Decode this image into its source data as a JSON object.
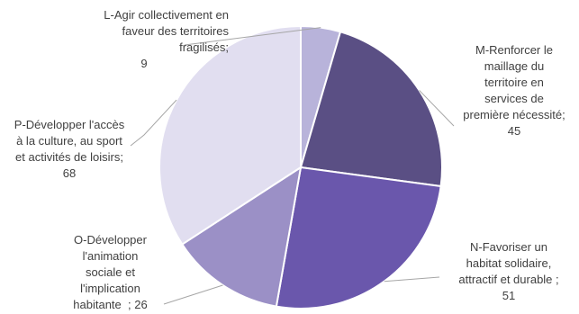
{
  "chart_data": {
    "type": "pie",
    "title": "",
    "slices": [
      {
        "label": "L-Agir collectivement en faveur des territoires fragilisés",
        "value": 9,
        "color": "#b8b3da"
      },
      {
        "label": "M-Renforcer le maillage du territoire en services de première nécessité",
        "value": 45,
        "color": "#5a4f84"
      },
      {
        "label": "N-Favoriser un habitat solidaire, attractif et durable",
        "value": 51,
        "color": "#6a57ac"
      },
      {
        "label": "O-Développer l'animation sociale et l'implication habitante",
        "value": 26,
        "color": "#9b90c6"
      },
      {
        "label": "P-Développer l'accès à la culture, au sport et activités de loisirs",
        "value": 68,
        "color": "#e1def0"
      }
    ]
  },
  "labels": {
    "L": {
      "lines": [
        "L-Agir collectivement en",
        "faveur des territoires",
        "fragilisés;"
      ],
      "value": "9"
    },
    "M": {
      "lines": [
        "M-Renforcer le",
        "maillage du",
        "territoire en",
        "services de",
        "première nécessité;"
      ],
      "value": "45"
    },
    "N": {
      "lines": [
        "N-Favoriser un",
        "habitat solidaire,",
        "attractif et durable ;"
      ],
      "value": "51"
    },
    "O": {
      "lines": [
        "O-Développer",
        "l'animation",
        "sociale et",
        "l'implication"
      ],
      "last": "habitante  ; ",
      "value": "26"
    },
    "P": {
      "lines": [
        "P-Développer l'accès",
        "à la culture, au sport",
        "et activités de loisirs;"
      ],
      "value": "68"
    }
  }
}
